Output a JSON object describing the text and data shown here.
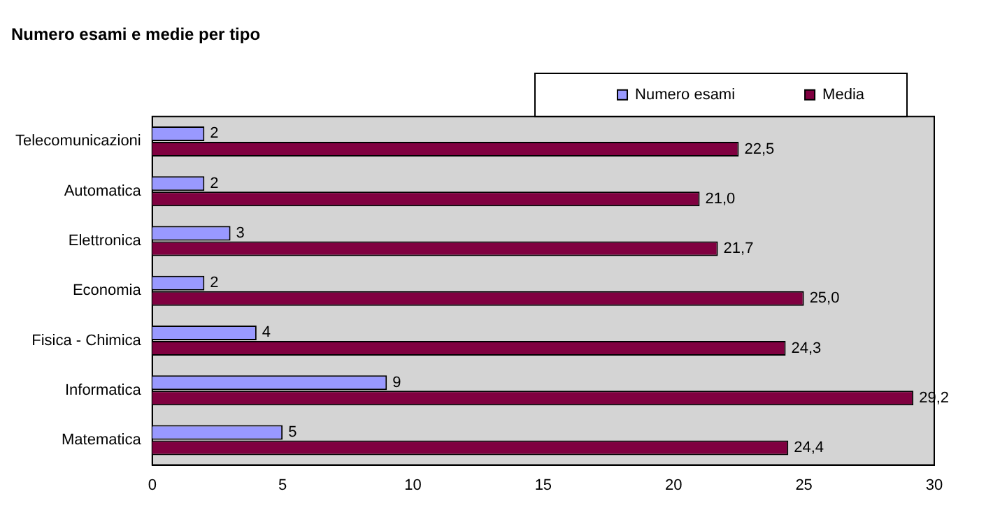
{
  "chart_data": {
    "type": "bar",
    "orientation": "horizontal",
    "title": "Numero esami e medie per tipo",
    "categories": [
      "Telecomunicazioni",
      "Automatica",
      "Elettronica",
      "Economia",
      "Fisica - Chimica",
      "Informatica",
      "Matematica"
    ],
    "series": [
      {
        "name": "Numero esami",
        "color": "#9999ff",
        "values": [
          2,
          2,
          3,
          2,
          4,
          9,
          5
        ],
        "value_labels": [
          "2",
          "2",
          "3",
          "2",
          "4",
          "9",
          "5"
        ]
      },
      {
        "name": "Media",
        "color": "#800040",
        "values": [
          22.5,
          21.0,
          21.7,
          25.0,
          24.3,
          29.2,
          24.4
        ],
        "value_labels": [
          "22,5",
          "21,0",
          "21,7",
          "25,0",
          "24,3",
          "29,2",
          "24,4"
        ]
      }
    ],
    "xlim": [
      0,
      30
    ],
    "xticks": [
      0,
      5,
      10,
      15,
      20,
      25,
      30
    ],
    "grid": false,
    "legend": "top right"
  }
}
